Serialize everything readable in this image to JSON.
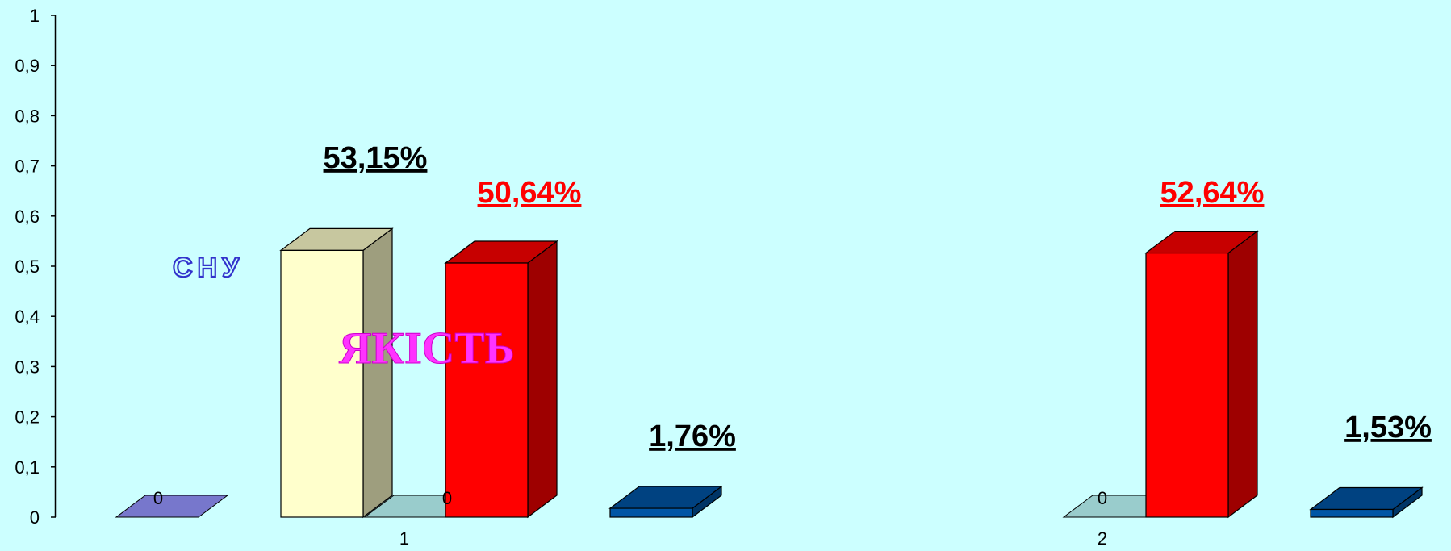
{
  "chart_data": {
    "type": "bar",
    "bar_style": "3d",
    "categories": [
      "1",
      "2"
    ],
    "ylim": [
      0,
      1
    ],
    "yticks": [
      "0",
      "0,1",
      "0,2",
      "0,3",
      "0,4",
      "0,5",
      "0,6",
      "0,7",
      "0,8",
      "0,9",
      "1"
    ],
    "grid": false,
    "series": [
      {
        "values": [
          0,
          null
        ],
        "value_labels": [
          "0",
          ""
        ],
        "color": "#7777cc"
      },
      {
        "values": [
          0.5315,
          null
        ],
        "value_labels": [
          "53,15%",
          ""
        ],
        "color": "#ffffcc"
      },
      {
        "values": [
          0,
          0
        ],
        "value_labels": [
          "0",
          "0"
        ],
        "color": "#99cccc"
      },
      {
        "values": [
          0.5064,
          0.5264
        ],
        "value_labels": [
          "50,64%",
          "52,64%"
        ],
        "color": "#ff0000"
      },
      {
        "values": [
          0.0176,
          0.0153
        ],
        "value_labels": [
          "1,76%",
          "1,53%"
        ],
        "color": "#0055a5"
      }
    ],
    "annotations": [
      "СНУ",
      "ЯКІСТЬ"
    ]
  },
  "colors": {
    "background": "#ccffff",
    "label_black": "#000000",
    "label_red": "#ff0000"
  }
}
